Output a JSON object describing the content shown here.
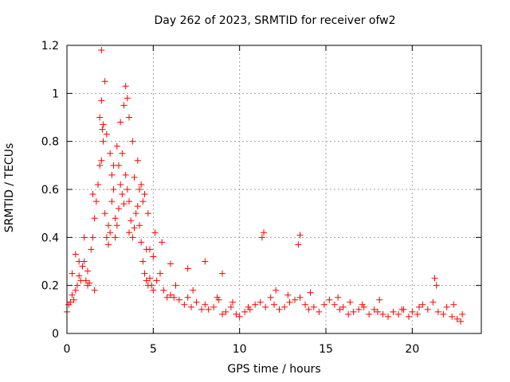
{
  "chart_data": {
    "type": "scatter",
    "title": "Day 262 of 2023, SRMTID for receiver ofw2",
    "xlabel": "GPS time / hours",
    "ylabel": "SRMTID / TECUs",
    "xlim": [
      0,
      24
    ],
    "ylim": [
      0,
      1.2
    ],
    "xticks": [
      0,
      5,
      10,
      15,
      20
    ],
    "yticks": [
      0,
      0.2,
      0.4,
      0.6,
      0.8,
      1,
      1.2
    ],
    "ytick_labels": [
      "0",
      "0.2",
      "0.4",
      "0.6",
      "0.8",
      "1",
      "1.2"
    ],
    "grid": true,
    "marker": "plus",
    "color": "#ff0000",
    "x": [
      0.0,
      0.1,
      0.2,
      0.3,
      0.4,
      0.5,
      0.6,
      0.7,
      0.8,
      0.9,
      1.0,
      1.1,
      1.2,
      1.3,
      1.4,
      1.5,
      1.6,
      1.7,
      1.8,
      1.9,
      2.0,
      2.05,
      2.1,
      2.2,
      2.3,
      2.4,
      2.5,
      2.6,
      2.7,
      2.8,
      2.9,
      3.0,
      3.1,
      3.2,
      3.3,
      3.4,
      3.5,
      3.6,
      3.7,
      3.8,
      3.9,
      4.0,
      4.1,
      4.2,
      4.3,
      4.4,
      4.5,
      4.6,
      4.7,
      4.8,
      4.9,
      5.0,
      5.2,
      5.4,
      5.6,
      5.8,
      6.0,
      6.2,
      6.5,
      6.8,
      7.0,
      7.2,
      7.5,
      7.8,
      8.0,
      8.2,
      8.5,
      8.8,
      9.0,
      9.2,
      9.5,
      9.8,
      10.0,
      10.3,
      10.6,
      10.9,
      11.2,
      11.5,
      11.8,
      12.0,
      12.3,
      12.6,
      12.9,
      13.2,
      13.5,
      13.8,
      14.0,
      14.3,
      14.6,
      14.9,
      15.2,
      15.5,
      15.8,
      16.0,
      16.3,
      16.6,
      16.9,
      17.2,
      17.5,
      17.8,
      18.0,
      18.3,
      18.6,
      18.9,
      19.2,
      19.5,
      19.8,
      20.0,
      20.3,
      20.6,
      20.9,
      21.2,
      21.5,
      21.8,
      22.0,
      22.3,
      22.6,
      22.9,
      0.5,
      1.0,
      1.5,
      1.9,
      2.0,
      2.1,
      2.3,
      2.5,
      2.7,
      2.9,
      3.1,
      3.3,
      3.4,
      3.5,
      3.6,
      3.8,
      4.1,
      4.3,
      4.5,
      4.7,
      5.1,
      5.5,
      6.0,
      7.0,
      8.0,
      9.0,
      11.3,
      11.4,
      13.4,
      13.5,
      2.0,
      2.2,
      2.6,
      3.0,
      3.2,
      3.9,
      4.2,
      4.4,
      4.8,
      5.0,
      0.3,
      0.7,
      1.2,
      1.6,
      2.4,
      2.8,
      3.6,
      4.6,
      6.3,
      7.3,
      8.7,
      9.6,
      10.5,
      12.1,
      12.8,
      14.1,
      15.7,
      16.4,
      17.1,
      18.1,
      19.4,
      20.4,
      21.3,
      21.4,
      22.4,
      22.8
    ],
    "y": [
      0.09,
      0.12,
      0.13,
      0.16,
      0.14,
      0.18,
      0.2,
      0.24,
      0.22,
      0.28,
      0.3,
      0.22,
      0.26,
      0.21,
      0.35,
      0.4,
      0.48,
      0.55,
      0.62,
      0.7,
      0.72,
      0.85,
      0.8,
      0.5,
      0.4,
      0.37,
      0.42,
      0.55,
      0.6,
      0.48,
      0.45,
      0.52,
      0.62,
      0.58,
      0.54,
      0.66,
      0.6,
      0.55,
      0.47,
      0.4,
      0.44,
      0.5,
      0.53,
      0.45,
      0.38,
      0.3,
      0.25,
      0.22,
      0.2,
      0.23,
      0.2,
      0.18,
      0.22,
      0.25,
      0.18,
      0.15,
      0.16,
      0.15,
      0.14,
      0.12,
      0.15,
      0.11,
      0.13,
      0.1,
      0.12,
      0.1,
      0.11,
      0.14,
      0.08,
      0.09,
      0.11,
      0.08,
      0.07,
      0.09,
      0.1,
      0.12,
      0.13,
      0.11,
      0.15,
      0.12,
      0.1,
      0.11,
      0.13,
      0.14,
      0.15,
      0.12,
      0.1,
      0.11,
      0.09,
      0.12,
      0.14,
      0.12,
      0.1,
      0.11,
      0.08,
      0.09,
      0.1,
      0.11,
      0.08,
      0.1,
      0.09,
      0.08,
      0.07,
      0.09,
      0.08,
      0.1,
      0.07,
      0.09,
      0.08,
      0.12,
      0.1,
      0.13,
      0.09,
      0.08,
      0.11,
      0.07,
      0.06,
      0.08,
      0.33,
      0.4,
      0.58,
      0.9,
      0.97,
      0.87,
      0.83,
      0.75,
      0.7,
      0.78,
      0.88,
      0.95,
      1.03,
      0.98,
      0.9,
      0.8,
      0.72,
      0.62,
      0.58,
      0.5,
      0.42,
      0.38,
      0.29,
      0.27,
      0.3,
      0.25,
      0.4,
      0.42,
      0.37,
      0.41,
      1.18,
      1.05,
      0.66,
      0.7,
      0.75,
      0.65,
      0.6,
      0.55,
      0.35,
      0.32,
      0.25,
      0.3,
      0.2,
      0.18,
      0.45,
      0.4,
      0.42,
      0.35,
      0.2,
      0.18,
      0.15,
      0.13,
      0.11,
      0.18,
      0.16,
      0.17,
      0.15,
      0.13,
      0.12,
      0.14,
      0.1,
      0.11,
      0.23,
      0.2,
      0.12,
      0.05
    ]
  }
}
